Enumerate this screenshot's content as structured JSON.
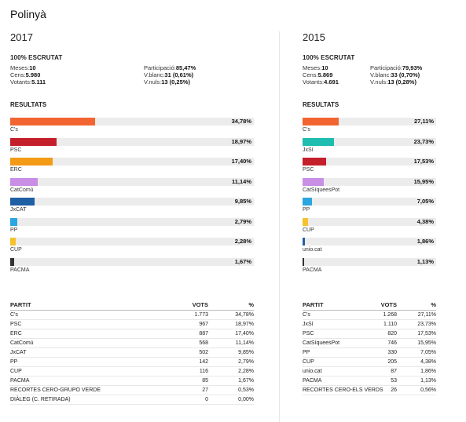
{
  "town": "Polinyà",
  "elections": [
    {
      "year": "2017",
      "scrutiny_title": "100% ESCRUTAT",
      "meta_left": [
        {
          "label": "Meses:",
          "value": "10"
        },
        {
          "label": "Cens:",
          "value": "5.980"
        },
        {
          "label": "Votants:",
          "value": "5.111"
        }
      ],
      "meta_right": [
        {
          "label": "Participació:",
          "value": "85,47%"
        },
        {
          "label": "V.blanc:",
          "value": "31 (0,61%)"
        },
        {
          "label": "V.nuls:",
          "value": "13 (0,25%)"
        }
      ],
      "results_title": "RESULTATS",
      "bars": [
        {
          "party": "C's",
          "pct_label": "34,78%",
          "value": 34.78,
          "color": "#f26530"
        },
        {
          "party": "PSC",
          "pct_label": "18,97%",
          "value": 18.97,
          "color": "#c4202b"
        },
        {
          "party": "ERC",
          "pct_label": "17,40%",
          "value": 17.4,
          "color": "#f39a16"
        },
        {
          "party": "CatComú",
          "pct_label": "11,14%",
          "value": 11.14,
          "color": "#c98ee6"
        },
        {
          "party": "JxCAT",
          "pct_label": "9,85%",
          "value": 9.85,
          "color": "#1f5fa3"
        },
        {
          "party": "PP",
          "pct_label": "2,79%",
          "value": 2.79,
          "color": "#2aa6e0"
        },
        {
          "party": "CUP",
          "pct_label": "2,28%",
          "value": 2.28,
          "color": "#f5c12e"
        },
        {
          "party": "PACMA",
          "pct_label": "1,67%",
          "value": 1.67,
          "color": "#333333"
        }
      ],
      "table_headers": {
        "party": "PARTIT",
        "votes": "VOTS",
        "pct": "%"
      },
      "table": [
        {
          "party": "C's",
          "votes": "1.773",
          "pct": "34,78%"
        },
        {
          "party": "PSC",
          "votes": "967",
          "pct": "18,97%"
        },
        {
          "party": "ERC",
          "votes": "887",
          "pct": "17,40%"
        },
        {
          "party": "CatComú",
          "votes": "568",
          "pct": "11,14%"
        },
        {
          "party": "JxCAT",
          "votes": "502",
          "pct": "9,85%"
        },
        {
          "party": "PP",
          "votes": "142",
          "pct": "2,79%"
        },
        {
          "party": "CUP",
          "votes": "116",
          "pct": "2,28%"
        },
        {
          "party": "PACMA",
          "votes": "85",
          "pct": "1,67%"
        },
        {
          "party": "RECORTES CERO-GRUPO VERDE",
          "votes": "27",
          "pct": "0,53%"
        },
        {
          "party": "DIÀLEG (C. RETIRADA)",
          "votes": "0",
          "pct": "0,00%"
        }
      ]
    },
    {
      "year": "2015",
      "scrutiny_title": "100% ESCRUTAT",
      "meta_left": [
        {
          "label": "Meses:",
          "value": "10"
        },
        {
          "label": "Cens:",
          "value": "5.869"
        },
        {
          "label": "Votants:",
          "value": "4.691"
        }
      ],
      "meta_right": [
        {
          "label": "Participació:",
          "value": "79,93%"
        },
        {
          "label": "V.blanc:",
          "value": "33 (0,70%)"
        },
        {
          "label": "V.nuls:",
          "value": "13 (0,28%)"
        }
      ],
      "results_title": "RESULTATS",
      "bars": [
        {
          "party": "C's",
          "pct_label": "27,11%",
          "value": 27.11,
          "color": "#f26530"
        },
        {
          "party": "JxSí",
          "pct_label": "23,73%",
          "value": 23.73,
          "color": "#1fbcb0"
        },
        {
          "party": "PSC",
          "pct_label": "17,53%",
          "value": 17.53,
          "color": "#c4202b"
        },
        {
          "party": "CatSíqueesPot",
          "pct_label": "15,95%",
          "value": 15.95,
          "color": "#c98ee6"
        },
        {
          "party": "PP",
          "pct_label": "7,05%",
          "value": 7.05,
          "color": "#2aa6e0"
        },
        {
          "party": "CUP",
          "pct_label": "4,38%",
          "value": 4.38,
          "color": "#f5c12e"
        },
        {
          "party": "unio.cat",
          "pct_label": "1,86%",
          "value": 1.86,
          "color": "#1f5fa3"
        },
        {
          "party": "PACMA",
          "pct_label": "1,13%",
          "value": 1.13,
          "color": "#333333"
        }
      ],
      "table_headers": {
        "party": "PARTIT",
        "votes": "VOTS",
        "pct": "%"
      },
      "table": [
        {
          "party": "C's",
          "votes": "1.268",
          "pct": "27,11%"
        },
        {
          "party": "JxSí",
          "votes": "1.110",
          "pct": "23,73%"
        },
        {
          "party": "PSC",
          "votes": "820",
          "pct": "17,53%"
        },
        {
          "party": "CatSíqueesPot",
          "votes": "746",
          "pct": "15,95%"
        },
        {
          "party": "PP",
          "votes": "330",
          "pct": "7,05%"
        },
        {
          "party": "CUP",
          "votes": "205",
          "pct": "4,38%"
        },
        {
          "party": "unio.cat",
          "votes": "87",
          "pct": "1,86%"
        },
        {
          "party": "PACMA",
          "votes": "53",
          "pct": "1,13%"
        },
        {
          "party": "RECORTES CERO-ELS VERDS",
          "votes": "26",
          "pct": "0,56%"
        }
      ]
    }
  ]
}
